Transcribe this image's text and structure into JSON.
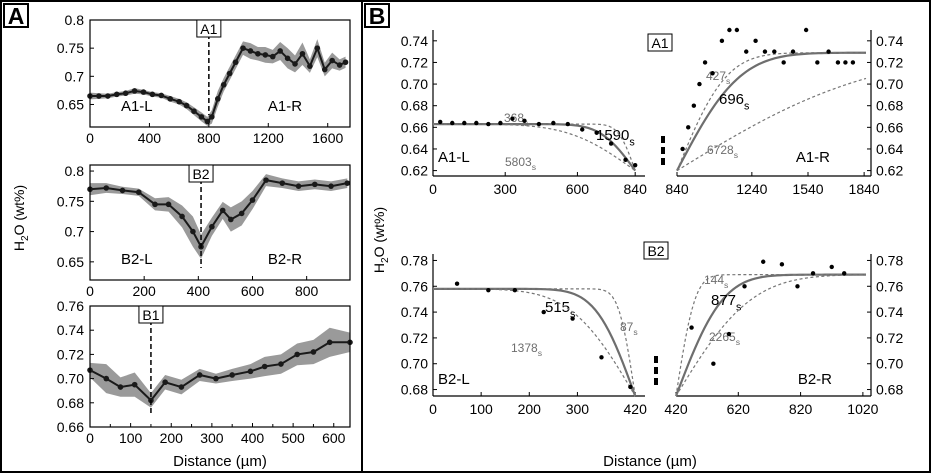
{
  "colors": {
    "data": "#1a1a1a",
    "envelope": "#9a9a9a",
    "fit": "#6e6e6e",
    "fit_dashed": "#777777"
  },
  "panel_a": {
    "letter": "A",
    "ylabel": "H₂O (wt%)",
    "xlabel": "Distance (µm)"
  },
  "panel_b": {
    "letter": "B",
    "ylabel": "H₂O (wt%)",
    "xlabel": "Distance (µm)"
  },
  "chart_data": [
    {
      "id": "a1",
      "panel": "A",
      "type": "line",
      "title": "A1",
      "xlim": [
        0,
        1750
      ],
      "ylim": [
        0.61,
        0.8
      ],
      "xticks": [
        0,
        400,
        800,
        1200,
        1600
      ],
      "xtick_labels": [
        "0",
        "400",
        "800",
        "1200",
        "1600"
      ],
      "yticks": [
        0.65,
        0.7,
        0.75,
        0.8
      ],
      "ytick_labels": [
        "0.65",
        "0.7",
        "0.75",
        "0.8"
      ],
      "grid": false,
      "divider_x": 800,
      "region_labels": [
        "A1-L",
        "A1-R"
      ],
      "x": [
        0,
        60,
        120,
        180,
        240,
        300,
        360,
        420,
        480,
        540,
        600,
        650,
        700,
        750,
        790,
        820,
        860,
        900,
        940,
        980,
        1030,
        1080,
        1130,
        1180,
        1230,
        1280,
        1330,
        1380,
        1430,
        1480,
        1530,
        1580,
        1630,
        1680,
        1720
      ],
      "y": [
        0.665,
        0.665,
        0.665,
        0.668,
        0.67,
        0.674,
        0.672,
        0.668,
        0.666,
        0.66,
        0.655,
        0.648,
        0.638,
        0.628,
        0.62,
        0.628,
        0.66,
        0.685,
        0.705,
        0.725,
        0.75,
        0.745,
        0.74,
        0.738,
        0.735,
        0.745,
        0.732,
        0.722,
        0.74,
        0.718,
        0.75,
        0.712,
        0.728,
        0.72,
        0.725
      ],
      "band": [
        0.006,
        0.005,
        0.004,
        0.004,
        0.004,
        0.005,
        0.004,
        0.004,
        0.004,
        0.005,
        0.005,
        0.006,
        0.007,
        0.008,
        0.008,
        0.012,
        0.014,
        0.012,
        0.012,
        0.012,
        0.012,
        0.014,
        0.012,
        0.014,
        0.012,
        0.016,
        0.018,
        0.015,
        0.02,
        0.012,
        0.016,
        0.012,
        0.014,
        0.01,
        0.01
      ]
    },
    {
      "id": "b2",
      "panel": "A",
      "type": "line",
      "title": "B2",
      "xlim": [
        0,
        960
      ],
      "ylim": [
        0.62,
        0.81
      ],
      "xticks": [
        0,
        200,
        400,
        600,
        800
      ],
      "xtick_labels": [
        "0",
        "200",
        "400",
        "600",
        "800"
      ],
      "yticks": [
        0.65,
        0.7,
        0.75,
        0.8
      ],
      "ytick_labels": [
        "0.65",
        "0.7",
        "0.75",
        "0.8"
      ],
      "grid": false,
      "divider_x": 410,
      "region_labels": [
        "B2-L",
        "B2-R"
      ],
      "x": [
        0,
        60,
        120,
        180,
        240,
        290,
        340,
        380,
        410,
        450,
        490,
        520,
        560,
        600,
        650,
        710,
        770,
        830,
        890,
        950
      ],
      "y": [
        0.77,
        0.772,
        0.768,
        0.765,
        0.745,
        0.745,
        0.725,
        0.7,
        0.675,
        0.708,
        0.735,
        0.72,
        0.73,
        0.752,
        0.785,
        0.78,
        0.775,
        0.778,
        0.775,
        0.78
      ],
      "band": [
        0.01,
        0.008,
        0.006,
        0.006,
        0.01,
        0.012,
        0.018,
        0.025,
        0.02,
        0.015,
        0.014,
        0.02,
        0.02,
        0.015,
        0.01,
        0.008,
        0.008,
        0.008,
        0.008,
        0.008
      ]
    },
    {
      "id": "b1",
      "panel": "A",
      "type": "line",
      "title": "B1",
      "xlim": [
        0,
        640
      ],
      "ylim": [
        0.66,
        0.76
      ],
      "xticks": [
        0,
        100,
        200,
        300,
        400,
        500,
        600
      ],
      "xtick_labels": [
        "0",
        "100",
        "200",
        "300",
        "400",
        "500",
        "600"
      ],
      "xticks_minor": [
        50,
        150,
        250,
        350,
        450,
        550
      ],
      "yticks": [
        0.66,
        0.68,
        0.7,
        0.72,
        0.74,
        0.76
      ],
      "ytick_labels": [
        "0.66",
        "0.68",
        "0.70",
        "0.72",
        "0.74",
        "0.76"
      ],
      "grid": false,
      "divider_x": 150,
      "region_labels": [],
      "x": [
        0,
        40,
        75,
        110,
        150,
        185,
        225,
        270,
        310,
        350,
        395,
        430,
        470,
        510,
        550,
        590,
        640
      ],
      "y": [
        0.707,
        0.7,
        0.693,
        0.695,
        0.682,
        0.697,
        0.693,
        0.703,
        0.7,
        0.703,
        0.706,
        0.71,
        0.712,
        0.72,
        0.722,
        0.73,
        0.73
      ],
      "band": [
        0.006,
        0.012,
        0.008,
        0.01,
        0.006,
        0.006,
        0.006,
        0.005,
        0.004,
        0.005,
        0.006,
        0.008,
        0.008,
        0.009,
        0.01,
        0.012,
        0.008
      ]
    },
    {
      "id": "b_a1",
      "panel": "B",
      "type": "scatter",
      "title": "A1",
      "left": {
        "label": "A1-L",
        "xlim": [
          0,
          860
        ],
        "ylim": [
          0.615,
          0.75
        ],
        "xticks": [
          0,
          300,
          600,
          840
        ],
        "xtick_labels": [
          "0",
          "300",
          "600",
          "840"
        ],
        "yticks": [
          0.62,
          0.64,
          0.66,
          0.68,
          0.7,
          0.72,
          0.74
        ],
        "ytick_labels": [
          "0.62",
          "0.64",
          "0.66",
          "0.68",
          "0.70",
          "0.72",
          "0.74"
        ],
        "points": [
          [
            30,
            0.665
          ],
          [
            80,
            0.664
          ],
          [
            130,
            0.664
          ],
          [
            180,
            0.664
          ],
          [
            230,
            0.663
          ],
          [
            280,
            0.664
          ],
          [
            330,
            0.668
          ],
          [
            380,
            0.666
          ],
          [
            440,
            0.663
          ],
          [
            500,
            0.664
          ],
          [
            560,
            0.663
          ],
          [
            620,
            0.658
          ],
          [
            680,
            0.655
          ],
          [
            740,
            0.645
          ],
          [
            800,
            0.63
          ],
          [
            840,
            0.625
          ]
        ],
        "fits": [
          {
            "label": "1590s",
            "t": 1590,
            "solid": true
          },
          {
            "label": "368s",
            "t": 368,
            "solid": false
          },
          {
            "label": "5803s",
            "t": 5803,
            "solid": false
          }
        ]
      },
      "right": {
        "label": "A1-R",
        "xlim": [
          840,
          1850
        ],
        "ylim": [
          0.615,
          0.75
        ],
        "xticks": [
          840,
          1240,
          1540,
          1840
        ],
        "xtick_labels": [
          "840",
          "1240",
          "1540",
          "1840"
        ],
        "yticks": [
          0.62,
          0.64,
          0.66,
          0.68,
          0.7,
          0.72,
          0.74
        ],
        "ytick_labels": [
          "0.62",
          "0.64",
          "0.66",
          "0.68",
          "0.70",
          "0.72",
          "0.74"
        ],
        "points": [
          [
            870,
            0.64
          ],
          [
            900,
            0.66
          ],
          [
            930,
            0.68
          ],
          [
            960,
            0.7
          ],
          [
            990,
            0.72
          ],
          [
            1030,
            0.71
          ],
          [
            1080,
            0.74
          ],
          [
            1120,
            0.75
          ],
          [
            1160,
            0.75
          ],
          [
            1210,
            0.73
          ],
          [
            1260,
            0.74
          ],
          [
            1310,
            0.73
          ],
          [
            1360,
            0.73
          ],
          [
            1410,
            0.72
          ],
          [
            1460,
            0.73
          ],
          [
            1530,
            0.75
          ],
          [
            1590,
            0.72
          ],
          [
            1650,
            0.73
          ],
          [
            1700,
            0.72
          ],
          [
            1740,
            0.72
          ],
          [
            1780,
            0.72
          ]
        ],
        "fits": [
          {
            "label": "696s",
            "t": 696,
            "solid": true
          },
          {
            "label": "427s",
            "t": 427,
            "solid": false
          },
          {
            "label": "6728s",
            "t": 6728,
            "solid": false
          }
        ]
      }
    },
    {
      "id": "b_b2",
      "panel": "B",
      "type": "scatter",
      "title": "B2",
      "left": {
        "label": "B2-L",
        "xlim": [
          0,
          430
        ],
        "ylim": [
          0.675,
          0.785
        ],
        "xticks": [
          0,
          100,
          200,
          300,
          420
        ],
        "xtick_labels": [
          "0",
          "100",
          "200",
          "300",
          "420"
        ],
        "yticks": [
          0.68,
          0.7,
          0.72,
          0.74,
          0.76,
          0.78
        ],
        "ytick_labels": [
          "0.68",
          "0.70",
          "0.72",
          "0.74",
          "0.76",
          "0.78"
        ],
        "points": [
          [
            50,
            0.762
          ],
          [
            115,
            0.757
          ],
          [
            170,
            0.757
          ],
          [
            230,
            0.74
          ],
          [
            290,
            0.735
          ],
          [
            350,
            0.705
          ],
          [
            410,
            0.682
          ]
        ],
        "fits": [
          {
            "label": "515s",
            "t": 515,
            "solid": true
          },
          {
            "label": "87s",
            "t": 87,
            "solid": false
          },
          {
            "label": "1378s",
            "t": 1378,
            "solid": false
          }
        ]
      },
      "right": {
        "label": "B2-R",
        "xlim": [
          420,
          1030
        ],
        "ylim": [
          0.675,
          0.785
        ],
        "xticks": [
          420,
          620,
          820,
          1020
        ],
        "xtick_labels": [
          "420",
          "620",
          "820",
          "1020"
        ],
        "yticks": [
          0.68,
          0.7,
          0.72,
          0.74,
          0.76,
          0.78
        ],
        "ytick_labels": [
          "0.68",
          "0.70",
          "0.72",
          "0.74",
          "0.76",
          "0.78"
        ],
        "points": [
          [
            470,
            0.728
          ],
          [
            540,
            0.7
          ],
          [
            590,
            0.723
          ],
          [
            640,
            0.76
          ],
          [
            700,
            0.779
          ],
          [
            760,
            0.777
          ],
          [
            810,
            0.76
          ],
          [
            860,
            0.77
          ],
          [
            920,
            0.775
          ],
          [
            960,
            0.77
          ]
        ],
        "fits": [
          {
            "label": "877s",
            "t": 877,
            "solid": true
          },
          {
            "label": "144s",
            "t": 144,
            "solid": false
          },
          {
            "label": "2265s",
            "t": 2265,
            "solid": false
          }
        ]
      }
    }
  ]
}
